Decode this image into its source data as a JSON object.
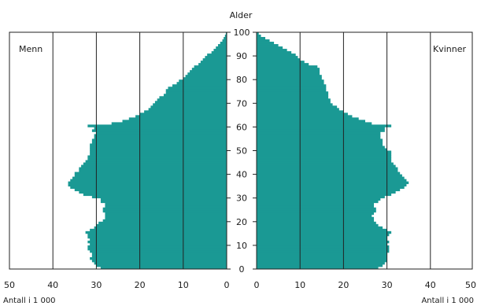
{
  "chart_data": {
    "type": "bar",
    "orientation": "horizontal",
    "subtype": "population-pyramid",
    "y_axis_label": "Alder",
    "x_axis_label_left": "Antall i 1 000",
    "x_axis_label_right": "Antall i 1 000",
    "left_panel_label": "Menn",
    "right_panel_label": "Kvinner",
    "xlim": [
      0,
      50
    ],
    "ylim": [
      0,
      100
    ],
    "x_ticks_left": [
      "50",
      "40",
      "30",
      "20",
      "10",
      "0"
    ],
    "x_ticks_right": [
      "0",
      "10",
      "20",
      "30",
      "40",
      "50"
    ],
    "y_ticks": [
      "0",
      "10",
      "20",
      "30",
      "40",
      "50",
      "60",
      "70",
      "80",
      "90",
      "100"
    ],
    "grid_vertical": true,
    "bar_color": "#1a9994",
    "series": [
      {
        "name": "Menn",
        "ages": [
          0,
          1,
          2,
          3,
          4,
          5,
          6,
          7,
          8,
          9,
          10,
          11,
          12,
          13,
          14,
          15,
          16,
          17,
          18,
          19,
          20,
          21,
          22,
          23,
          24,
          25,
          26,
          27,
          28,
          29,
          30,
          31,
          32,
          33,
          34,
          35,
          36,
          37,
          38,
          39,
          40,
          41,
          42,
          43,
          44,
          45,
          46,
          47,
          48,
          49,
          50,
          51,
          52,
          53,
          54,
          55,
          56,
          57,
          58,
          59,
          60,
          61,
          62,
          63,
          64,
          65,
          66,
          67,
          68,
          69,
          70,
          71,
          72,
          73,
          74,
          75,
          76,
          77,
          78,
          79,
          80,
          81,
          82,
          83,
          84,
          85,
          86,
          87,
          88,
          89,
          90,
          91,
          92,
          93,
          94,
          95,
          96,
          97,
          98,
          99
        ],
        "values": [
          29,
          30,
          30.5,
          31,
          31.5,
          31,
          31,
          31.5,
          32,
          32,
          31.5,
          32,
          31.5,
          32,
          32,
          32.5,
          31.5,
          30.5,
          30,
          29.5,
          28.5,
          28,
          28,
          28,
          28.5,
          28.5,
          28,
          28,
          29,
          29,
          31,
          33,
          34,
          35,
          36,
          36.5,
          36.5,
          36,
          35.5,
          35,
          35,
          34,
          34,
          33.5,
          33,
          32.5,
          32,
          32,
          31.5,
          31.5,
          31.5,
          31.5,
          31.5,
          31,
          31,
          30.5,
          30.5,
          30,
          31,
          30.5,
          32,
          26.5,
          24,
          22.5,
          21,
          20,
          19,
          18,
          17.5,
          17,
          16.5,
          16,
          15.5,
          14.5,
          14,
          14,
          13.5,
          12.5,
          11.5,
          11,
          10,
          9.5,
          9,
          8.5,
          8,
          7.5,
          6.5,
          6,
          5.5,
          5,
          4.5,
          3.5,
          3,
          2.5,
          2,
          1.5,
          1,
          0.7,
          0.4,
          0.2
        ]
      },
      {
        "name": "Kvinner",
        "ages": [
          0,
          1,
          2,
          3,
          4,
          5,
          6,
          7,
          8,
          9,
          10,
          11,
          12,
          13,
          14,
          15,
          16,
          17,
          18,
          19,
          20,
          21,
          22,
          23,
          24,
          25,
          26,
          27,
          28,
          29,
          30,
          31,
          32,
          33,
          34,
          35,
          36,
          37,
          38,
          39,
          40,
          41,
          42,
          43,
          44,
          45,
          46,
          47,
          48,
          49,
          50,
          51,
          52,
          53,
          54,
          55,
          56,
          57,
          58,
          59,
          60,
          61,
          62,
          63,
          64,
          65,
          66,
          67,
          68,
          69,
          70,
          71,
          72,
          73,
          74,
          75,
          76,
          77,
          78,
          79,
          80,
          81,
          82,
          83,
          84,
          85,
          86,
          87,
          88,
          89,
          90,
          91,
          92,
          93,
          94,
          95,
          96,
          97,
          98,
          99
        ],
        "values": [
          28,
          29,
          29.5,
          30,
          30,
          30,
          30,
          30.5,
          30.5,
          30.5,
          30,
          30.5,
          30,
          30,
          30.5,
          31,
          30,
          29,
          28,
          27.5,
          27,
          27,
          26.5,
          27,
          27.5,
          27.5,
          27,
          27,
          28,
          28.5,
          29.5,
          31,
          32,
          33,
          34,
          34.5,
          35,
          34.5,
          34,
          33.5,
          33,
          32.5,
          32.5,
          32,
          31.5,
          31,
          31,
          31,
          31,
          31,
          30,
          29.5,
          29,
          29,
          29,
          28.5,
          28.5,
          28.5,
          29.5,
          29.5,
          31,
          26.5,
          25,
          23.5,
          22,
          21,
          20,
          19,
          18.5,
          17.5,
          17,
          17,
          16.5,
          16.5,
          16.5,
          16,
          16,
          16,
          15.5,
          15.5,
          15,
          15,
          14.5,
          14.5,
          14.5,
          14,
          12,
          11,
          10,
          9.5,
          9,
          8,
          7,
          6,
          5,
          4,
          3,
          2,
          1,
          0.5
        ]
      }
    ]
  }
}
